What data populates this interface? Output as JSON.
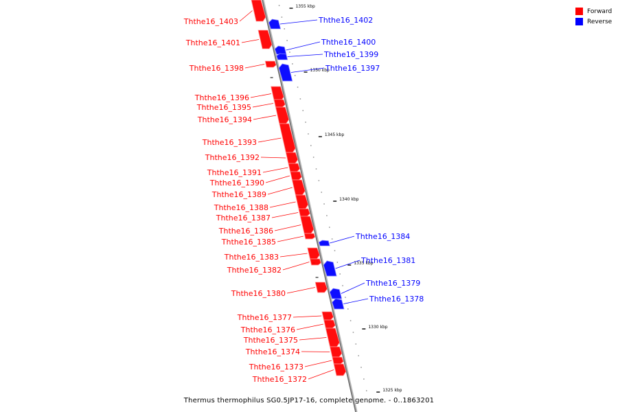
{
  "legend": {
    "forward_label": "Forward",
    "reverse_label": "Reverse",
    "forward_color": "#ff0000",
    "reverse_color": "#0000ff"
  },
  "caption": "Thermus thermophilus SG0.5JP17-16, complete genome. - 0..1863201",
  "axis": {
    "tick_labels": [
      "1355 kbp",
      "1350 kbp",
      "1345 kbp",
      "1340 kbp",
      "1335 kbp",
      "1330 kbp",
      "1325 kbp"
    ]
  },
  "genes": [
    {
      "name": "Ththe16_1403",
      "strand": "forward"
    },
    {
      "name": "Ththe16_1402",
      "strand": "reverse"
    },
    {
      "name": "Ththe16_1401",
      "strand": "forward"
    },
    {
      "name": "Ththe16_1400",
      "strand": "reverse"
    },
    {
      "name": "Ththe16_1399",
      "strand": "reverse"
    },
    {
      "name": "Ththe16_1398",
      "strand": "forward"
    },
    {
      "name": "Ththe16_1397",
      "strand": "reverse"
    },
    {
      "name": "Ththe16_1396",
      "strand": "forward"
    },
    {
      "name": "Ththe16_1395",
      "strand": "forward"
    },
    {
      "name": "Ththe16_1394",
      "strand": "forward"
    },
    {
      "name": "Ththe16_1393",
      "strand": "forward"
    },
    {
      "name": "Ththe16_1392",
      "strand": "forward"
    },
    {
      "name": "Ththe16_1391",
      "strand": "forward"
    },
    {
      "name": "Ththe16_1390",
      "strand": "forward"
    },
    {
      "name": "Ththe16_1389",
      "strand": "forward"
    },
    {
      "name": "Ththe16_1388",
      "strand": "forward"
    },
    {
      "name": "Ththe16_1387",
      "strand": "forward"
    },
    {
      "name": "Ththe16_1386",
      "strand": "forward"
    },
    {
      "name": "Ththe16_1385",
      "strand": "forward"
    },
    {
      "name": "Ththe16_1384",
      "strand": "reverse"
    },
    {
      "name": "Ththe16_1383",
      "strand": "forward"
    },
    {
      "name": "Ththe16_1382",
      "strand": "forward"
    },
    {
      "name": "Ththe16_1381",
      "strand": "reverse"
    },
    {
      "name": "Ththe16_1380",
      "strand": "forward"
    },
    {
      "name": "Ththe16_1379",
      "strand": "reverse"
    },
    {
      "name": "Ththe16_1378",
      "strand": "reverse"
    },
    {
      "name": "Ththe16_1377",
      "strand": "forward"
    },
    {
      "name": "Ththe16_1376",
      "strand": "forward"
    },
    {
      "name": "Ththe16_1375",
      "strand": "forward"
    },
    {
      "name": "Ththe16_1374",
      "strand": "forward"
    },
    {
      "name": "Ththe16_1373",
      "strand": "forward"
    },
    {
      "name": "Ththe16_1372",
      "strand": "forward"
    }
  ]
}
